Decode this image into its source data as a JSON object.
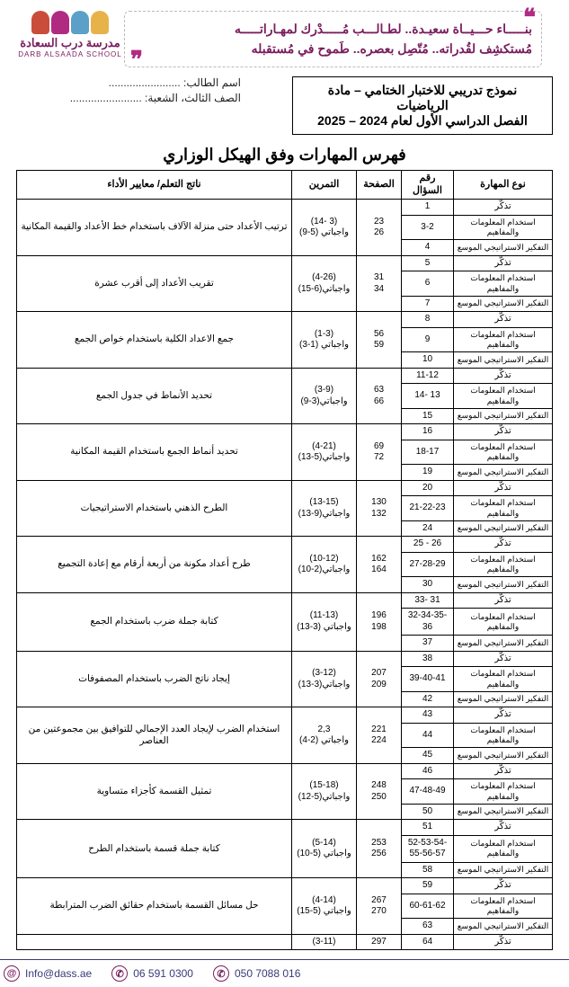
{
  "brand": {
    "colors": [
      "#e8b24a",
      "#5aa0c8",
      "#b02a82",
      "#c94d3a"
    ],
    "name_ar": "مدرسة درب السعادة",
    "name_en": "DARB ALSAADA SCHOOL"
  },
  "tagline": {
    "l1": "بنـــــاء حـــيــاة سعيـدة.. لطـالـــب مُـــــدْرك لمهـاراتـــــه",
    "l2": "مُستكشِف لقُدراته.. مُتّصِل بعصره.. طَموح في مُستقبله"
  },
  "title_box": {
    "l1": "نموذج تدريبي للاختبار الختامي – مادة الرياضيات",
    "l2": "الفصل الدراسي الأول لعام 2024 – 2025"
  },
  "meta": {
    "name_lbl": "اسم الطالب:",
    "class_lbl": "الصف الثالث، الشعبة:",
    "dots": "........................"
  },
  "index_title": "فهرس المهارات وفق الهيكل الوزاري",
  "headers": {
    "type": "نوع المهارة",
    "qn": "رقم السؤال",
    "page": "الصفحة",
    "ex": "التمرين",
    "outcome": "ناتج التعلم/ معايير الأداء"
  },
  "skill_labels": {
    "recall": "تذكّر",
    "use": "استخدام المعلومات والمفاهيم",
    "strat": "التفكير الاستراتيجي الموسع"
  },
  "groups": [
    {
      "rows": [
        {
          "t": "recall",
          "q": "1"
        },
        {
          "t": "use",
          "q": "3-2"
        },
        {
          "t": "strat",
          "q": "4"
        }
      ],
      "pages": [
        "23",
        "26"
      ],
      "ex": [
        "(3 -14)",
        "واجباتي (5-9)"
      ],
      "outcome": "ترتيب الأعداد حتى منزلة الآلاف باستخدام خط الأعداد والقيمة المكانية"
    },
    {
      "rows": [
        {
          "t": "recall",
          "q": "5"
        },
        {
          "t": "use",
          "q": "6"
        },
        {
          "t": "strat",
          "q": "7"
        }
      ],
      "pages": [
        "31",
        "34"
      ],
      "ex": [
        "(4-26)",
        "واجباتي(6-15)"
      ],
      "outcome": "تقريب الأعداد إلى أقرب عشرة"
    },
    {
      "rows": [
        {
          "t": "recall",
          "q": "8"
        },
        {
          "t": "use",
          "q": "9"
        },
        {
          "t": "strat",
          "q": "10"
        }
      ],
      "pages": [
        "56",
        "59"
      ],
      "ex": [
        "(1-3)",
        "واجباتي (1-3)"
      ],
      "outcome": "جمع الاعداد الكلية باستخدام خواص الجمع"
    },
    {
      "rows": [
        {
          "t": "recall",
          "q": "11-12"
        },
        {
          "t": "use",
          "q": "13 -14"
        },
        {
          "t": "strat",
          "q": "15"
        }
      ],
      "pages": [
        "63",
        "66"
      ],
      "ex": [
        "(3-9)",
        "واجباتي(3-9)"
      ],
      "outcome": "تحديد الأنماط في جدول الجمع"
    },
    {
      "rows": [
        {
          "t": "recall",
          "q": "16"
        },
        {
          "t": "use",
          "q": "18-17"
        },
        {
          "t": "strat",
          "q": "19"
        }
      ],
      "pages": [
        "69",
        "72"
      ],
      "ex": [
        "(4-21)",
        "واجباتي(5-13)"
      ],
      "outcome": "تحديد أنماط الجمع باستخدام القيمة المكانية"
    },
    {
      "rows": [
        {
          "t": "recall",
          "q": "20"
        },
        {
          "t": "use",
          "q": "21-22-23"
        },
        {
          "t": "strat",
          "q": "24"
        }
      ],
      "pages": [
        "130",
        "132"
      ],
      "ex": [
        "(13-15)",
        "واجباتي(9-13)"
      ],
      "outcome": "الطرح الذهني باستخدام الاستراتيجيات"
    },
    {
      "rows": [
        {
          "t": "recall",
          "q": "26 - 25"
        },
        {
          "t": "use",
          "q": "27-28-29"
        },
        {
          "t": "strat",
          "q": "30"
        }
      ],
      "pages": [
        "162",
        "164"
      ],
      "ex": [
        "(10-12)",
        "واجباتي(2-10)"
      ],
      "outcome": "طرح أعداد مكونة من أربعة أرقام مع إعادة التجميع"
    },
    {
      "rows": [
        {
          "t": "recall",
          "q": "31 -33"
        },
        {
          "t": "use",
          "q": "32-34-35-36"
        },
        {
          "t": "strat",
          "q": "37"
        }
      ],
      "pages": [
        "196",
        "198"
      ],
      "ex": [
        "(11-13)",
        "واجباتي (3-13)"
      ],
      "outcome": "كتابة جملة ضرب باستخدام الجمع"
    },
    {
      "rows": [
        {
          "t": "recall",
          "q": "38"
        },
        {
          "t": "use",
          "q": "39-40-41"
        },
        {
          "t": "strat",
          "q": "42"
        }
      ],
      "pages": [
        "207",
        "209"
      ],
      "ex": [
        "(3-12)",
        "واجباتي(3-13)"
      ],
      "outcome": "إيجاد ناتج الضرب باستخدام المصفوفات"
    },
    {
      "rows": [
        {
          "t": "recall",
          "q": "43"
        },
        {
          "t": "use",
          "q": "44"
        },
        {
          "t": "strat",
          "q": "45"
        }
      ],
      "pages": [
        "221",
        "224"
      ],
      "ex": [
        "2,3",
        "واجباتي (2-4)"
      ],
      "outcome": "استخدام الضرب لإيجاد العدد الإجمالي للتوافيق بين مجموعتين من العناصر"
    },
    {
      "rows": [
        {
          "t": "recall",
          "q": "46"
        },
        {
          "t": "use",
          "q": "47-48-49"
        },
        {
          "t": "strat",
          "q": "50"
        }
      ],
      "pages": [
        "248",
        "250"
      ],
      "ex": [
        "(15-18)",
        "واجباتي(5-12)"
      ],
      "outcome": "تمثيل القسمة كأجزاء متساوية"
    },
    {
      "rows": [
        {
          "t": "recall",
          "q": "51"
        },
        {
          "t": "use",
          "q": "52-53-54-55-56-57"
        },
        {
          "t": "strat",
          "q": "58"
        }
      ],
      "pages": [
        "253",
        "256"
      ],
      "ex": [
        "(5-14)",
        "واجباتي (5-10)"
      ],
      "outcome": "كتابة جملة قسمة باستخدام الطرح"
    },
    {
      "rows": [
        {
          "t": "recall",
          "q": "59"
        },
        {
          "t": "use",
          "q": "60-61-62"
        },
        {
          "t": "strat",
          "q": "63"
        }
      ],
      "pages": [
        "267",
        "270"
      ],
      "ex": [
        "(4-14)",
        "واجباتي (5-15)"
      ],
      "outcome": "حل مسائل القسمة باستخدام حقائق الضرب المترابطة"
    },
    {
      "rows": [
        {
          "t": "recall",
          "q": "64"
        }
      ],
      "pages": [
        "297"
      ],
      "ex": [
        "(3-11)"
      ],
      "outcome": ""
    }
  ],
  "footer": {
    "email": "Info@dass.ae",
    "phone1": "06 591 0300",
    "phone2": "050 7088 016"
  }
}
